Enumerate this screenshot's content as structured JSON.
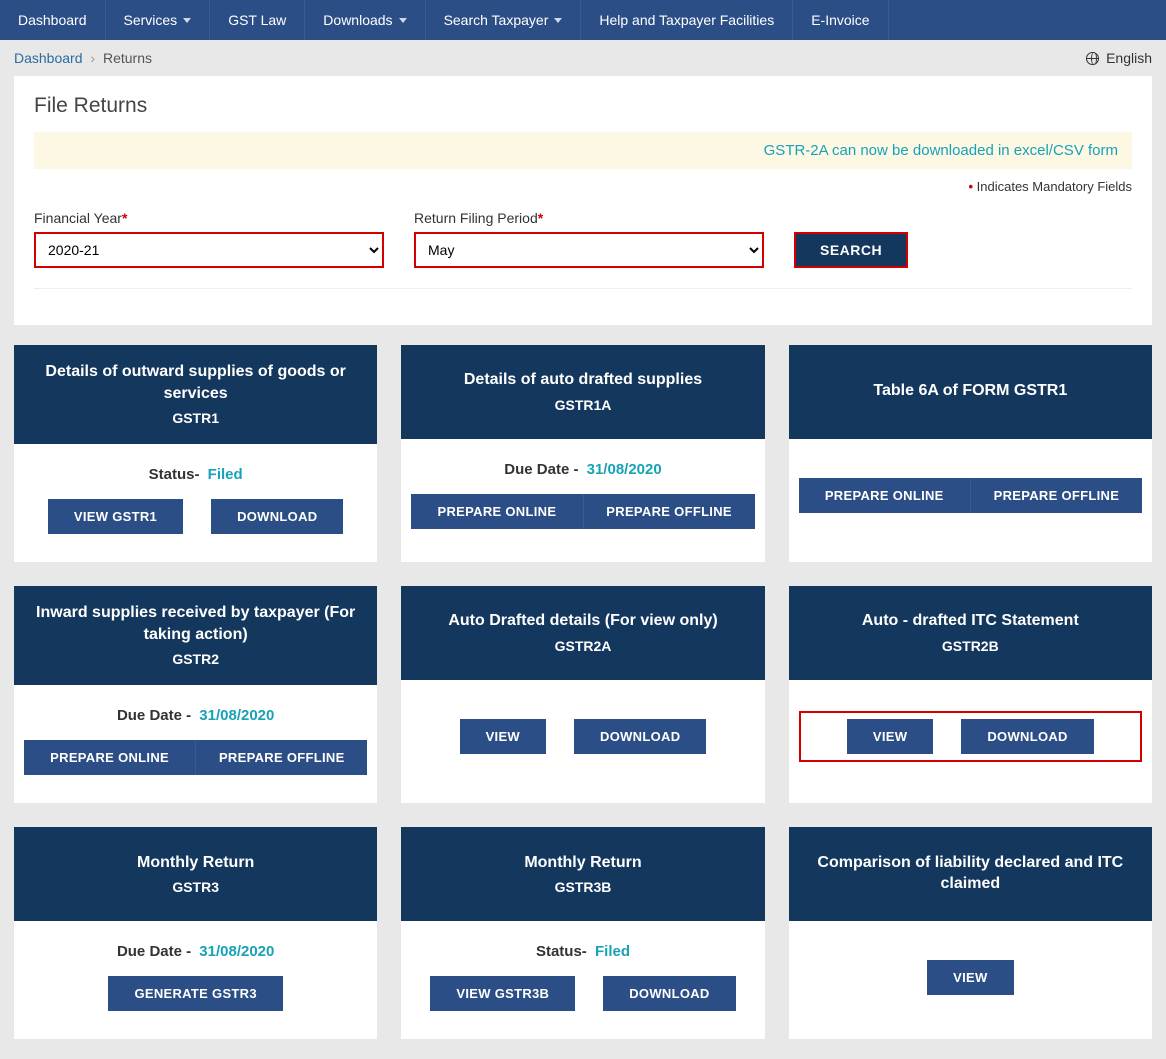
{
  "nav": {
    "items": [
      {
        "label": "Dashboard",
        "caret": false
      },
      {
        "label": "Services",
        "caret": true
      },
      {
        "label": "GST Law",
        "caret": false
      },
      {
        "label": "Downloads",
        "caret": true
      },
      {
        "label": "Search Taxpayer",
        "caret": true
      },
      {
        "label": "Help and Taxpayer Facilities",
        "caret": false
      },
      {
        "label": "E-Invoice",
        "caret": false
      }
    ]
  },
  "breadcrumb": {
    "link": "Dashboard",
    "current": "Returns",
    "language": "English"
  },
  "panel": {
    "heading": "File Returns",
    "banner": "GSTR-2A can now be downloaded in excel/CSV form",
    "mandatory_label": " Indicates Mandatory Fields",
    "fy_label": "Financial Year",
    "fy_value": "2020-21",
    "period_label": "Return Filing Period",
    "period_value": "May",
    "search_label": "SEARCH"
  },
  "labels": {
    "status": "Status- ",
    "due": "Due Date - "
  },
  "tiles": [
    {
      "title": "Details of outward supplies of goods or services",
      "code": "GSTR1",
      "status": "Filed",
      "buttons": [
        {
          "label": "VIEW GSTR1"
        },
        {
          "label": "DOWNLOAD"
        }
      ]
    },
    {
      "title": "Details of auto drafted supplies",
      "code": "GSTR1A",
      "due": "31/08/2020",
      "split_buttons": [
        {
          "label": "PREPARE ONLINE"
        },
        {
          "label": "PREPARE OFFLINE"
        }
      ]
    },
    {
      "title": "Table 6A of FORM GSTR1",
      "code": "",
      "split_buttons": [
        {
          "label": "PREPARE ONLINE"
        },
        {
          "label": "PREPARE OFFLINE"
        }
      ]
    },
    {
      "title": "Inward supplies received by taxpayer (For taking action)",
      "code": "GSTR2",
      "due": "31/08/2020",
      "split_buttons": [
        {
          "label": "PREPARE ONLINE"
        },
        {
          "label": "PREPARE OFFLINE"
        }
      ]
    },
    {
      "title": "Auto Drafted details (For view only)",
      "code": "GSTR2A",
      "buttons": [
        {
          "label": "VIEW"
        },
        {
          "label": "DOWNLOAD"
        }
      ]
    },
    {
      "title": "Auto - drafted ITC Statement",
      "code": "GSTR2B",
      "highlight_buttons": [
        {
          "label": "VIEW"
        },
        {
          "label": "DOWNLOAD"
        }
      ]
    },
    {
      "title": "Monthly Return",
      "code": "GSTR3",
      "due": "31/08/2020",
      "buttons": [
        {
          "label": "GENERATE GSTR3"
        }
      ]
    },
    {
      "title": "Monthly Return",
      "code": "GSTR3B",
      "status": "Filed",
      "buttons": [
        {
          "label": "VIEW GSTR3B"
        },
        {
          "label": "DOWNLOAD"
        }
      ]
    },
    {
      "title": "Comparison of liability declared and ITC claimed",
      "code": "",
      "buttons": [
        {
          "label": "VIEW"
        }
      ]
    }
  ],
  "colors": {
    "nav_bg": "#2c4e86",
    "tile_head_bg": "#14375e",
    "page_bg": "#e8e8e8",
    "accent_red": "#d40000",
    "accent_teal": "#17a2b8",
    "banner_bg": "#fcf8e3"
  }
}
